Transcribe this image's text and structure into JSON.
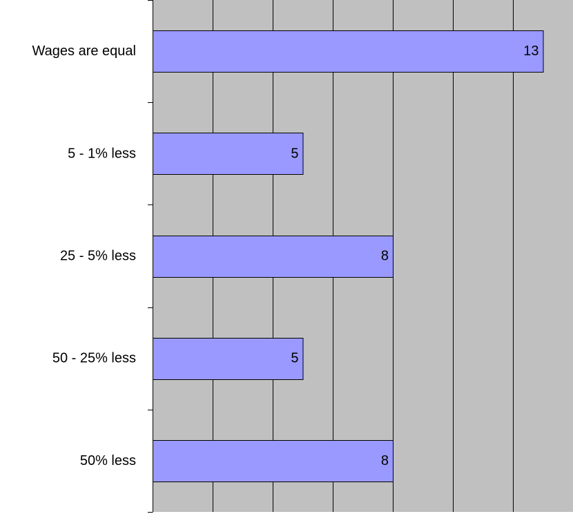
{
  "chart_data": {
    "type": "bar",
    "orientation": "horizontal",
    "categories": [
      "Wages are equal",
      "5 - 1% less",
      "25 - 5% less",
      "50 - 25% less",
      "50% less"
    ],
    "values": [
      13,
      5,
      8,
      5,
      8
    ],
    "data_labels": [
      "13",
      "5",
      "8",
      "5",
      "8"
    ],
    "title": "",
    "xlabel": "",
    "ylabel": "",
    "xlim": [
      0,
      14
    ],
    "grid": true,
    "legend": "none",
    "colors": {
      "bar": "#9999ff",
      "plot_background": "#c0c0c0",
      "grid": "#000000"
    }
  }
}
